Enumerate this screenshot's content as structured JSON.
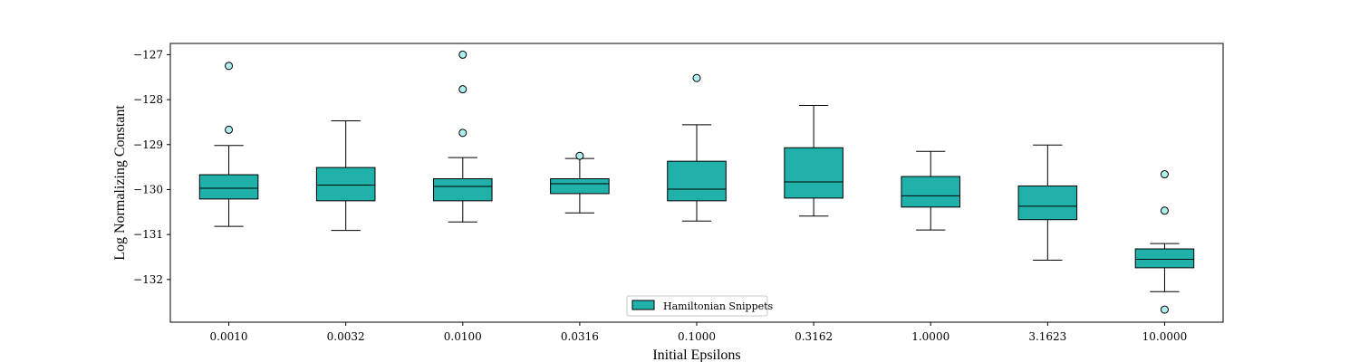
{
  "chart_data": {
    "type": "box",
    "xlabel": "Initial Epsilons",
    "ylabel": "Log Normalizing Constant",
    "ylim": [
      -132.95,
      -126.75
    ],
    "yticks": [
      -127,
      -128,
      -129,
      -130,
      -131,
      -132
    ],
    "ytick_labels": [
      "−127",
      "−128",
      "−129",
      "−130",
      "−131",
      "−132"
    ],
    "categories": [
      "0.0010",
      "0.0032",
      "0.0100",
      "0.0316",
      "0.1000",
      "0.3162",
      "1.0000",
      "3.1623",
      "10.0000"
    ],
    "box_color": "#20b2aa",
    "outlier_color": "#afeeee",
    "legend": {
      "label": "Hamiltonian Snippets",
      "position": "lower-center"
    },
    "series": [
      {
        "name": "Hamiltonian Snippets",
        "boxes": [
          {
            "whislo": -130.82,
            "q1": -130.21,
            "med": -129.97,
            "q3": -129.67,
            "whishi": -129.02,
            "fliers": [
              -127.25,
              -128.67
            ]
          },
          {
            "whislo": -130.91,
            "q1": -130.25,
            "med": -129.9,
            "q3": -129.51,
            "whishi": -128.47,
            "fliers": []
          },
          {
            "whislo": -130.72,
            "q1": -130.25,
            "med": -129.93,
            "q3": -129.76,
            "whishi": -129.29,
            "fliers": [
              -127.0,
              -127.77,
              -128.74
            ]
          },
          {
            "whislo": -130.52,
            "q1": -130.09,
            "med": -129.87,
            "q3": -129.76,
            "whishi": -129.31,
            "fliers": [
              -129.25
            ]
          },
          {
            "whislo": -130.7,
            "q1": -130.25,
            "med": -129.99,
            "q3": -129.37,
            "whishi": -128.56,
            "fliers": [
              -127.52
            ]
          },
          {
            "whislo": -130.59,
            "q1": -130.19,
            "med": -129.83,
            "q3": -129.07,
            "whishi": -128.13,
            "fliers": []
          },
          {
            "whislo": -130.9,
            "q1": -130.39,
            "med": -130.14,
            "q3": -129.71,
            "whishi": -129.15,
            "fliers": []
          },
          {
            "whislo": -131.57,
            "q1": -130.67,
            "med": -130.37,
            "q3": -129.92,
            "whishi": -129.01,
            "fliers": []
          },
          {
            "whislo": -132.27,
            "q1": -131.74,
            "med": -131.55,
            "q3": -131.32,
            "whishi": -131.2,
            "fliers": [
              -129.66,
              -130.47,
              -132.67
            ]
          }
        ]
      }
    ]
  }
}
